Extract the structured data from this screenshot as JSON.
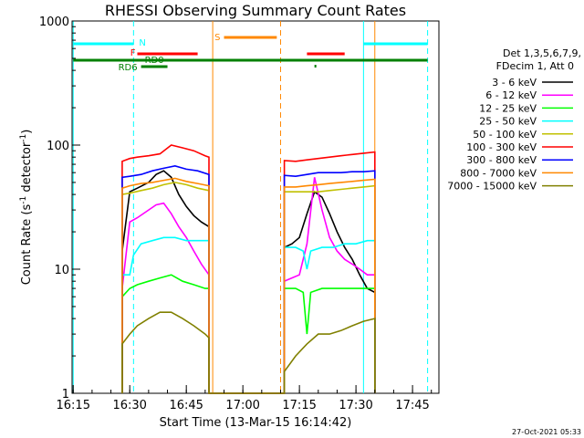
{
  "chart_data": {
    "type": "line",
    "title": "RHESSI Observing Summary Count Rates",
    "xlabel": "Start Time (13-Mar-15 16:14:42)",
    "ylabel_main": "Count Rate (s",
    "ylabel_sup1": "-1",
    "ylabel_mid": " detector",
    "ylabel_sup2": "-1",
    "ylabel_end": ")",
    "yscale": "log",
    "ylim": [
      1,
      1000
    ],
    "xlim": [
      "16:15",
      "17:52"
    ],
    "x_ticks": [
      "16:15",
      "16:30",
      "16:45",
      "17:00",
      "17:15",
      "17:30",
      "17:45"
    ],
    "y_ticks": [
      "1",
      "10",
      "100",
      "1000"
    ],
    "legend_header": [
      "Det 1,3,5,6,7,9,",
      "FDecim 1, Att 0"
    ],
    "footer_date": "27-Oct-2021 05:33",
    "flag_labels": {
      "N": "N",
      "F": "F",
      "RD0": "RD0",
      "RD6": "RD6",
      "S": "S"
    },
    "colors": {
      "night": "#00ffff",
      "flare": "#ff0000",
      "saa": "#ff8800",
      "decimation": "#008000"
    },
    "flags": [
      {
        "label": "N",
        "color": "#00ffff",
        "segments": [
          [
            "16:15",
            "16:31"
          ],
          [
            "17:32",
            "17:49"
          ]
        ]
      },
      {
        "label": "F",
        "color": "#ff0000",
        "segments": [
          [
            "16:32",
            "16:48"
          ],
          [
            "17:17",
            "17:27"
          ]
        ]
      },
      {
        "label": "S",
        "color": "#ff8800",
        "segments": [
          [
            "16:55",
            "17:09"
          ]
        ]
      },
      {
        "label": "RD0",
        "color": "#008000",
        "segments": [
          [
            "16:15",
            "17:49"
          ]
        ]
      },
      {
        "label": "RD6",
        "color": "#008000",
        "segments": [
          [
            "16:33",
            "16:40"
          ]
        ]
      }
    ],
    "vertical_markers": [
      {
        "time": "16:15",
        "color": "#00ffff",
        "style": "solid"
      },
      {
        "time": "16:31",
        "color": "#00ffff",
        "style": "dashed"
      },
      {
        "time": "16:52",
        "color": "#ff8800",
        "style": "solid"
      },
      {
        "time": "17:10",
        "color": "#ff8800",
        "style": "dashed"
      },
      {
        "time": "17:32",
        "color": "#00ffff",
        "style": "solid"
      },
      {
        "time": "17:35",
        "color": "#ff8800",
        "style": "solid"
      },
      {
        "time": "17:49",
        "color": "#00ffff",
        "style": "dashed"
      }
    ],
    "series": [
      {
        "name": "3 - 6 keV",
        "color": "#000000",
        "x": [
          "16:28",
          "16:30",
          "16:32",
          "16:35",
          "16:37",
          "16:39",
          "16:41",
          "16:43",
          "16:45",
          "16:47",
          "16:49",
          "16:51",
          "17:11",
          "17:13",
          "17:15",
          "17:17",
          "17:19",
          "17:21",
          "17:23",
          "17:25",
          "17:27",
          "17:29",
          "17:31",
          "17:33",
          "17:35"
        ],
        "y": [
          14,
          42,
          45,
          50,
          58,
          62,
          55,
          40,
          32,
          27,
          24,
          22,
          15,
          16,
          18,
          28,
          42,
          38,
          28,
          20,
          15,
          12,
          9,
          7,
          6.5
        ]
      },
      {
        "name": "6 - 12 keV",
        "color": "#ff00ff",
        "x": [
          "16:28",
          "16:30",
          "16:32",
          "16:35",
          "16:37",
          "16:39",
          "16:41",
          "16:43",
          "16:45",
          "16:47",
          "16:49",
          "16:51",
          "17:11",
          "17:13",
          "17:15",
          "17:17",
          "17:19",
          "17:21",
          "17:23",
          "17:25",
          "17:27",
          "17:29",
          "17:31",
          "17:33",
          "17:35"
        ],
        "y": [
          7,
          24,
          26,
          30,
          33,
          34,
          28,
          22,
          18,
          14,
          11,
          9,
          8,
          8.5,
          9,
          16,
          55,
          30,
          18,
          14,
          12,
          11,
          10,
          9,
          9
        ]
      },
      {
        "name": "12 - 25 keV",
        "color": "#00ff00",
        "x": [
          "16:28",
          "16:30",
          "16:32",
          "16:35",
          "16:38",
          "16:41",
          "16:44",
          "16:47",
          "16:50",
          "16:51",
          "17:11",
          "17:14",
          "17:16",
          "17:17",
          "17:18",
          "17:21",
          "17:24",
          "17:27",
          "17:30",
          "17:33",
          "17:35"
        ],
        "y": [
          6,
          7,
          7.5,
          8,
          8.5,
          9,
          8,
          7.5,
          7,
          7,
          7,
          7,
          6.5,
          3,
          6.5,
          7,
          7,
          7,
          7,
          7,
          7
        ]
      },
      {
        "name": "25 - 50 keV",
        "color": "#00ffff",
        "x": [
          "16:28",
          "16:30",
          "16:31",
          "16:33",
          "16:36",
          "16:39",
          "16:42",
          "16:45",
          "16:48",
          "16:51",
          "17:11",
          "17:14",
          "17:16",
          "17:17",
          "17:18",
          "17:21",
          "17:24",
          "17:27",
          "17:30",
          "17:33",
          "17:35"
        ],
        "y": [
          9,
          9,
          13,
          16,
          17,
          18,
          18,
          17,
          17,
          17,
          15,
          15,
          14,
          10,
          14,
          15,
          15,
          16,
          16,
          17,
          17
        ]
      },
      {
        "name": "50 - 100 keV",
        "color": "#c0c000",
        "x": [
          "16:28",
          "16:30",
          "16:33",
          "16:36",
          "16:39",
          "16:42",
          "16:45",
          "16:48",
          "16:51",
          "17:11",
          "17:14",
          "17:17",
          "17:20",
          "17:23",
          "17:26",
          "17:29",
          "17:32",
          "17:35"
        ],
        "y": [
          40,
          41,
          43,
          45,
          48,
          50,
          48,
          45,
          43,
          42,
          42,
          42,
          42,
          43,
          44,
          45,
          46,
          47
        ]
      },
      {
        "name": "100 - 300 keV",
        "color": "#ff0000",
        "x": [
          "16:28",
          "16:30",
          "16:32",
          "16:35",
          "16:38",
          "16:41",
          "16:44",
          "16:47",
          "16:50",
          "16:51",
          "17:11",
          "17:14",
          "17:17",
          "17:20",
          "17:23",
          "17:26",
          "17:29",
          "17:32",
          "17:35"
        ],
        "y": [
          74,
          78,
          80,
          82,
          85,
          100,
          95,
          90,
          82,
          80,
          75,
          74,
          76,
          78,
          80,
          82,
          84,
          86,
          88
        ]
      },
      {
        "name": "300 - 800 keV",
        "color": "#0000ff",
        "x": [
          "16:28",
          "16:30",
          "16:33",
          "16:36",
          "16:39",
          "16:42",
          "16:45",
          "16:48",
          "16:51",
          "17:11",
          "17:14",
          "17:17",
          "17:20",
          "17:23",
          "17:26",
          "17:29",
          "17:32",
          "17:35"
        ],
        "y": [
          55,
          56,
          58,
          62,
          65,
          68,
          64,
          62,
          58,
          57,
          56,
          58,
          60,
          60,
          60,
          61,
          61,
          62
        ]
      },
      {
        "name": "800 - 7000 keV",
        "color": "#ff8800",
        "x": [
          "16:28",
          "16:30",
          "16:33",
          "16:36",
          "16:39",
          "16:42",
          "16:45",
          "16:48",
          "16:51",
          "17:11",
          "17:14",
          "17:17",
          "17:20",
          "17:23",
          "17:26",
          "17:29",
          "17:32",
          "17:35"
        ],
        "y": [
          45,
          47,
          49,
          50,
          52,
          54,
          51,
          49,
          47,
          46,
          46,
          47,
          48,
          49,
          50,
          51,
          52,
          53
        ]
      },
      {
        "name": "7000 - 15000 keV",
        "color": "#808000",
        "x": [
          "16:28",
          "16:30",
          "16:32",
          "16:35",
          "16:38",
          "16:41",
          "16:44",
          "16:47",
          "16:50",
          "16:51",
          "17:11",
          "17:14",
          "17:17",
          "17:20",
          "17:23",
          "17:26",
          "17:29",
          "17:32",
          "17:35"
        ],
        "y": [
          2.5,
          3,
          3.5,
          4,
          4.5,
          4.5,
          4,
          3.5,
          3,
          2.8,
          1.5,
          2,
          2.5,
          3,
          3,
          3.2,
          3.5,
          3.8,
          4
        ]
      }
    ]
  }
}
